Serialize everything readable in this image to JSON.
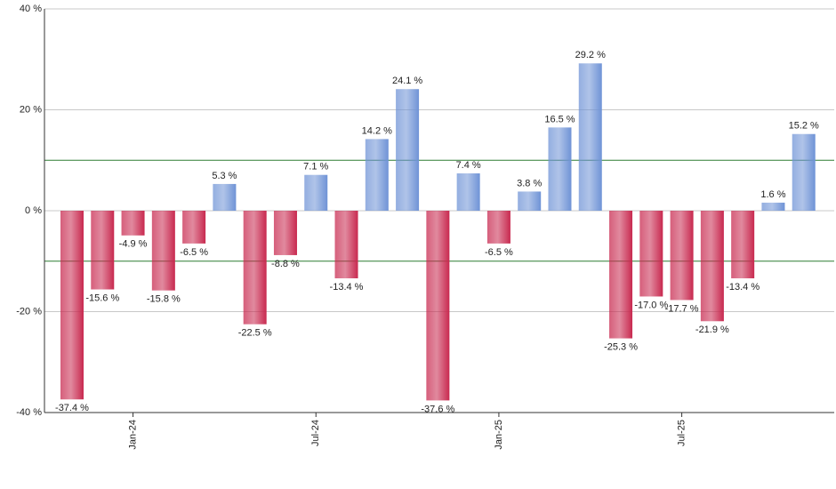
{
  "chart_data": {
    "type": "bar",
    "categories": [
      null,
      null,
      "Jan-24",
      null,
      null,
      null,
      null,
      null,
      "Jul-24",
      null,
      null,
      null,
      null,
      null,
      "Jan-25",
      null,
      null,
      null,
      null,
      null,
      "Jul-25",
      null,
      null,
      null,
      null
    ],
    "values": [
      -37.4,
      -15.6,
      -4.9,
      -15.8,
      -6.5,
      5.3,
      -22.5,
      -8.8,
      7.1,
      -13.4,
      14.2,
      24.1,
      -37.6,
      7.4,
      -6.5,
      3.8,
      16.5,
      29.2,
      -25.3,
      -17.0,
      -17.7,
      -21.9,
      -13.4,
      1.6,
      15.2
    ],
    "value_labels": [
      "-37.4 %",
      "-15.6 %",
      "-4.9 %",
      "-15.8 %",
      "-6.5 %",
      "5.3 %",
      "-22.5 %",
      "-8.8 %",
      "7.1 %",
      "-13.4 %",
      "14.2 %",
      "24.1 %",
      "-37.6 %",
      "7.4 %",
      "-6.5 %",
      "3.8 %",
      "16.5 %",
      "29.2 %",
      "-25.3 %",
      "-17.0 %",
      "-17.7 %",
      "-21.9 %",
      "-13.4 %",
      "1.6 %",
      "15.2 %"
    ],
    "positive_color": "#6f93d6",
    "negative_color": "#c8294f",
    "ylim": [
      -40,
      40
    ],
    "yticks": [
      {
        "value": -40,
        "label": "-40 %"
      },
      {
        "value": -20,
        "label": "-20 %"
      },
      {
        "value": 0,
        "label": "0 %"
      },
      {
        "value": 20,
        "label": "20 %"
      },
      {
        "value": 40,
        "label": "40 %"
      }
    ],
    "reference_lines": [
      10,
      -10
    ],
    "reference_color": "#2e7d32",
    "grid": true
  }
}
